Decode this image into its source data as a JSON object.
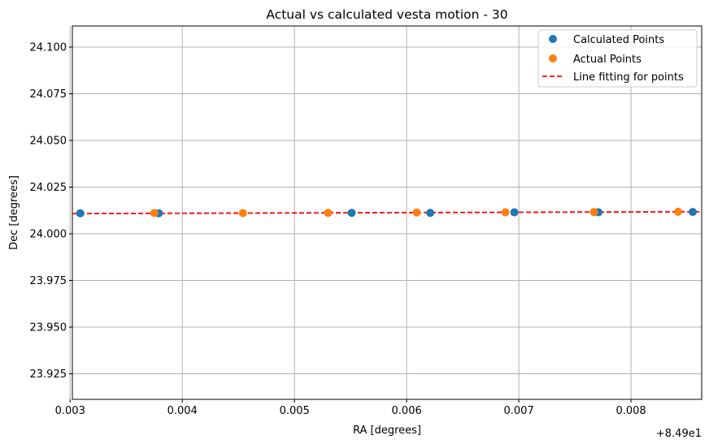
{
  "chart_data": {
    "type": "scatter",
    "title": "Actual vs calculated vesta motion - 30",
    "xlabel": "RA [degrees]",
    "ylabel": "Dec [degrees]",
    "x_offset_label": "+8.49e1",
    "xlim": [
      84.90302,
      84.90863
    ],
    "ylim": [
      23.9113,
      24.1113
    ],
    "xticks": [
      84.903,
      84.904,
      84.905,
      84.906,
      84.907,
      84.908
    ],
    "xtick_labels": [
      "0.003",
      "0.004",
      "0.005",
      "0.006",
      "0.007",
      "0.008"
    ],
    "yticks": [
      23.925,
      23.95,
      23.975,
      24.0,
      24.025,
      24.05,
      24.075,
      24.1
    ],
    "ytick_labels": [
      "23.925",
      "23.950",
      "23.975",
      "24.000",
      "24.025",
      "24.050",
      "24.075",
      "24.100"
    ],
    "grid": true,
    "legend_position": "top-right",
    "series": [
      {
        "name": "Calculated Points",
        "kind": "scatter",
        "color": "#1f77b4",
        "x": [
          84.90309,
          84.90379,
          84.90551,
          84.90621,
          84.90696,
          84.90771,
          84.90855
        ],
        "y": [
          24.011,
          24.011,
          24.0112,
          24.0112,
          24.0115,
          24.0115,
          24.0117
        ]
      },
      {
        "name": "Actual Points",
        "kind": "scatter",
        "color": "#ff7f0e",
        "x": [
          84.90375,
          84.90454,
          84.9053,
          84.90609,
          84.90688,
          84.90767,
          84.90842
        ],
        "y": [
          24.0111,
          24.0111,
          24.0112,
          24.0114,
          24.0115,
          24.0116,
          24.0118
        ]
      },
      {
        "name": "Line fitting for points",
        "kind": "line",
        "style": "dashed",
        "color": "#ff0000",
        "x": [
          84.90302,
          84.90863
        ],
        "y": [
          24.0108,
          24.0118
        ]
      }
    ]
  }
}
